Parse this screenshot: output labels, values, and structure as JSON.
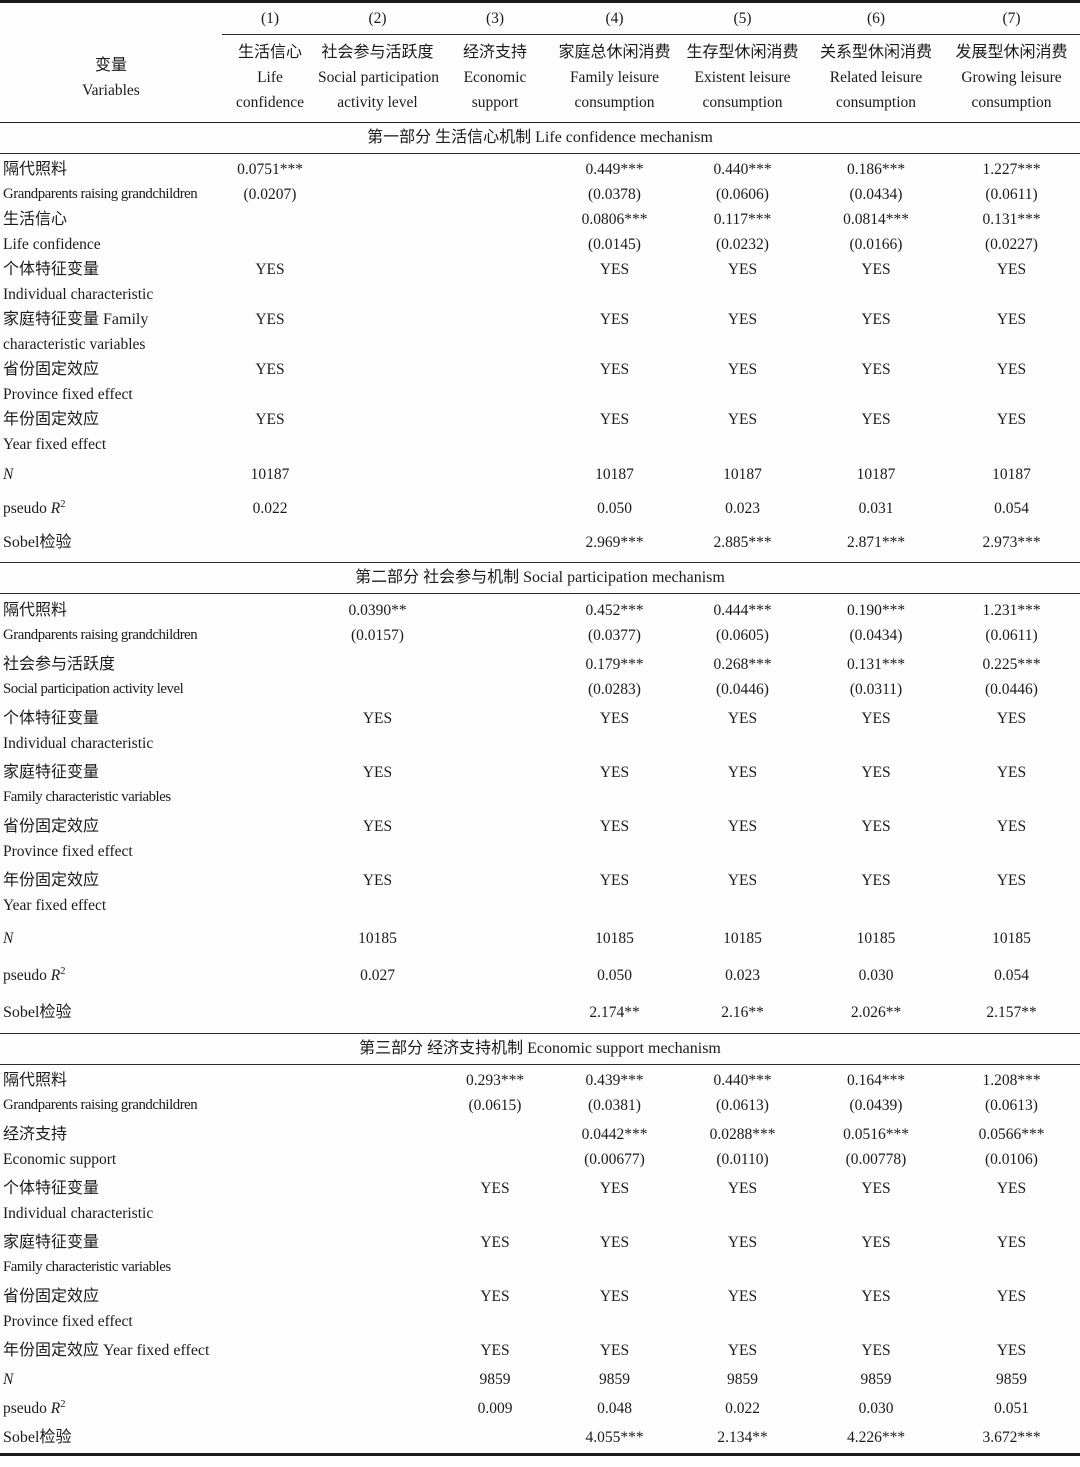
{
  "table": {
    "column_numbers": [
      "(1)",
      "(2)",
      "(3)",
      "(4)",
      "(5)",
      "(6)",
      "(7)"
    ],
    "variables_header": [
      "变量",
      "Variables"
    ],
    "columns": [
      {
        "zh": "生活信心",
        "en1": "Life",
        "en2": "confidence"
      },
      {
        "zh": "社会参与活跃度",
        "en1": "Social participation",
        "en2": "activity level"
      },
      {
        "zh": "经济支持",
        "en1": "Economic",
        "en2": "support"
      },
      {
        "zh": "家庭总休闲消费",
        "en1": "Family leisure",
        "en2": "consumption"
      },
      {
        "zh": "生存型休闲消费",
        "en1": "Existent leisure",
        "en2": "consumption"
      },
      {
        "zh": "关系型休闲消费",
        "en1": "Related leisure",
        "en2": "consumption"
      },
      {
        "zh": "发展型休闲消费",
        "en1": "Growing leisure",
        "en2": "consumption"
      }
    ],
    "sections": [
      {
        "title": "第一部分 生活信心机制 Life confidence mechanism",
        "rows": [
          {
            "label": [
              "隔代照料",
              "Grandparents raising grandchildren"
            ],
            "cells": [
              [
                "0.0751***",
                "(0.0207)"
              ],
              null,
              null,
              [
                "0.449***",
                "(0.0378)"
              ],
              [
                "0.440***",
                "(0.0606)"
              ],
              [
                "0.186***",
                "(0.0434)"
              ],
              [
                "1.227***",
                "(0.0611)"
              ]
            ]
          },
          {
            "label": [
              "生活信心",
              "Life confidence"
            ],
            "cells": [
              null,
              null,
              null,
              [
                "0.0806***",
                "(0.0145)"
              ],
              [
                "0.117***",
                "(0.0232)"
              ],
              [
                "0.0814***",
                "(0.0166)"
              ],
              [
                "0.131***",
                "(0.0227)"
              ]
            ]
          },
          {
            "label": [
              "个体特征变量",
              "Individual characteristic"
            ],
            "cells": [
              [
                "YES"
              ],
              null,
              null,
              [
                "YES"
              ],
              [
                "YES"
              ],
              [
                "YES"
              ],
              [
                "YES"
              ]
            ]
          },
          {
            "label": [
              "家庭特征变量 Family",
              "characteristic variables"
            ],
            "cells": [
              [
                "YES"
              ],
              null,
              null,
              [
                "YES"
              ],
              [
                "YES"
              ],
              [
                "YES"
              ],
              [
                "YES"
              ]
            ]
          },
          {
            "label": [
              "省份固定效应",
              "Province fixed effect"
            ],
            "cells": [
              [
                "YES"
              ],
              null,
              null,
              [
                "YES"
              ],
              [
                "YES"
              ],
              [
                "YES"
              ],
              [
                "YES"
              ]
            ]
          },
          {
            "label": [
              "年份固定效应",
              "Year fixed effect"
            ],
            "cells": [
              [
                "YES"
              ],
              null,
              null,
              [
                "YES"
              ],
              [
                "YES"
              ],
              [
                "YES"
              ],
              [
                "YES"
              ]
            ]
          },
          {
            "label": [
              "{i}N{/i}"
            ],
            "cells": [
              [
                "10187"
              ],
              null,
              null,
              [
                "10187"
              ],
              [
                "10187"
              ],
              [
                "10187"
              ],
              [
                "10187"
              ]
            ]
          },
          {
            "label": [
              "pseudo {i}R{/i}{sup}2{/sup}"
            ],
            "cells": [
              [
                "0.022"
              ],
              null,
              null,
              [
                "0.050"
              ],
              [
                "0.023"
              ],
              [
                "0.031"
              ],
              [
                "0.054"
              ]
            ]
          },
          {
            "label": [
              "Sobel检验"
            ],
            "cells": [
              null,
              null,
              null,
              [
                "2.969***"
              ],
              [
                "2.885***"
              ],
              [
                "2.871***"
              ],
              [
                "2.973***"
              ]
            ]
          }
        ]
      },
      {
        "title": "第二部分 社会参与机制 Social participation mechanism",
        "rows": [
          {
            "label": [
              "隔代照料",
              "Grandparents raising grandchildren"
            ],
            "cells": [
              null,
              [
                "0.0390**",
                "(0.0157)"
              ],
              null,
              [
                "0.452***",
                "(0.0377)"
              ],
              [
                "0.444***",
                "(0.0605)"
              ],
              [
                "0.190***",
                "(0.0434)"
              ],
              [
                "1.231***",
                "(0.0611)"
              ]
            ]
          },
          {
            "label": [
              "社会参与活跃度",
              "Social participation activity level"
            ],
            "cells": [
              null,
              null,
              null,
              [
                "0.179***",
                "(0.0283)"
              ],
              [
                "0.268***",
                "(0.0446)"
              ],
              [
                "0.131***",
                "(0.0311)"
              ],
              [
                "0.225***",
                "(0.0446)"
              ]
            ]
          },
          {
            "label": [
              "个体特征变量",
              "Individual characteristic"
            ],
            "cells": [
              null,
              [
                "YES"
              ],
              null,
              [
                "YES"
              ],
              [
                "YES"
              ],
              [
                "YES"
              ],
              [
                "YES"
              ]
            ]
          },
          {
            "label": [
              "家庭特征变量",
              "Family characteristic variables"
            ],
            "cells": [
              null,
              [
                "YES"
              ],
              null,
              [
                "YES"
              ],
              [
                "YES"
              ],
              [
                "YES"
              ],
              [
                "YES"
              ]
            ]
          },
          {
            "label": [
              "省份固定效应",
              "Province fixed effect"
            ],
            "cells": [
              null,
              [
                "YES"
              ],
              null,
              [
                "YES"
              ],
              [
                "YES"
              ],
              [
                "YES"
              ],
              [
                "YES"
              ]
            ]
          },
          {
            "label": [
              "年份固定效应",
              "Year fixed effect"
            ],
            "cells": [
              null,
              [
                "YES"
              ],
              null,
              [
                "YES"
              ],
              [
                "YES"
              ],
              [
                "YES"
              ],
              [
                "YES"
              ]
            ]
          },
          {
            "label": [
              "{i}N{/i}"
            ],
            "cells": [
              null,
              [
                "10185"
              ],
              null,
              [
                "10185"
              ],
              [
                "10185"
              ],
              [
                "10185"
              ],
              [
                "10185"
              ]
            ]
          },
          {
            "label": [
              "pseudo {i}R{/i}{sup}2{/sup}"
            ],
            "cells": [
              null,
              [
                "0.027"
              ],
              null,
              [
                "0.050"
              ],
              [
                "0.023"
              ],
              [
                "0.030"
              ],
              [
                "0.054"
              ]
            ]
          },
          {
            "label": [
              "Sobel检验"
            ],
            "cells": [
              null,
              null,
              null,
              [
                "2.174**"
              ],
              [
                "2.16**"
              ],
              [
                "2.026**"
              ],
              [
                "2.157**"
              ]
            ]
          }
        ]
      },
      {
        "title": "第三部分 经济支持机制 Economic support mechanism",
        "rows": [
          {
            "label": [
              "隔代照料",
              "Grandparents raising grandchildren"
            ],
            "cells": [
              null,
              null,
              [
                "0.293***",
                "(0.0615)"
              ],
              [
                "0.439***",
                "(0.0381)"
              ],
              [
                "0.440***",
                "(0.0613)"
              ],
              [
                "0.164***",
                "(0.0439)"
              ],
              [
                "1.208***",
                "(0.0613)"
              ]
            ]
          },
          {
            "label": [
              "经济支持",
              "Economic support"
            ],
            "cells": [
              null,
              null,
              null,
              [
                "0.0442***",
                "(0.00677)"
              ],
              [
                "0.0288***",
                "(0.0110)"
              ],
              [
                "0.0516***",
                "(0.00778)"
              ],
              [
                "0.0566***",
                "(0.0106)"
              ]
            ]
          },
          {
            "label": [
              "个体特征变量",
              "Individual characteristic"
            ],
            "cells": [
              null,
              null,
              [
                "YES"
              ],
              [
                "YES"
              ],
              [
                "YES"
              ],
              [
                "YES"
              ],
              [
                "YES"
              ]
            ]
          },
          {
            "label": [
              "家庭特征变量",
              "Family characteristic variables"
            ],
            "cells": [
              null,
              null,
              [
                "YES"
              ],
              [
                "YES"
              ],
              [
                "YES"
              ],
              [
                "YES"
              ],
              [
                "YES"
              ]
            ]
          },
          {
            "label": [
              "省份固定效应",
              "Province fixed effect"
            ],
            "cells": [
              null,
              null,
              [
                "YES"
              ],
              [
                "YES"
              ],
              [
                "YES"
              ],
              [
                "YES"
              ],
              [
                "YES"
              ]
            ]
          },
          {
            "label": [
              "年份固定效应 Year fixed effect"
            ],
            "cells": [
              null,
              null,
              [
                "YES"
              ],
              [
                "YES"
              ],
              [
                "YES"
              ],
              [
                "YES"
              ],
              [
                "YES"
              ]
            ]
          },
          {
            "label": [
              "{i}N{/i}"
            ],
            "cells": [
              null,
              null,
              [
                "9859"
              ],
              [
                "9859"
              ],
              [
                "9859"
              ],
              [
                "9859"
              ],
              [
                "9859"
              ]
            ]
          },
          {
            "label": [
              "pseudo {i}R{/i}{sup}2{/sup}"
            ],
            "cells": [
              null,
              null,
              [
                "0.009"
              ],
              [
                "0.048"
              ],
              [
                "0.022"
              ],
              [
                "0.030"
              ],
              [
                "0.051"
              ]
            ]
          },
          {
            "label": [
              "Sobel检验"
            ],
            "cells": [
              null,
              null,
              null,
              [
                "4.055***"
              ],
              [
                "2.134**"
              ],
              [
                "4.226***"
              ],
              [
                "3.672***"
              ]
            ]
          }
        ]
      }
    ]
  }
}
